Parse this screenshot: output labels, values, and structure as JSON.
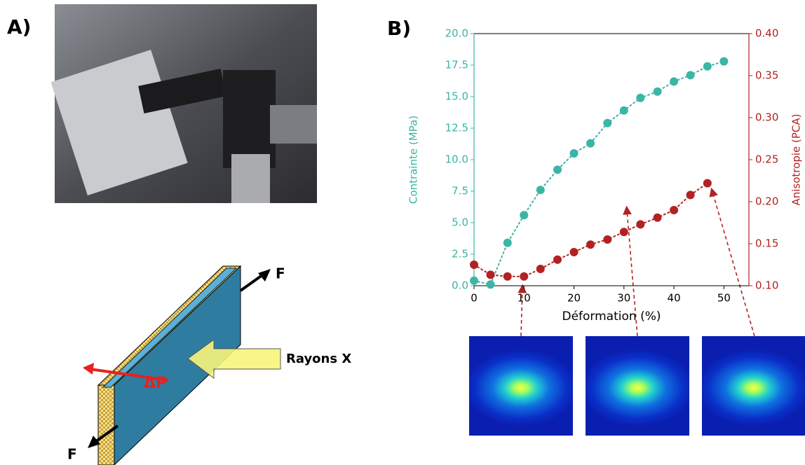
{
  "panel_labels": [
    "A)",
    "B)"
  ],
  "diagram": {
    "labels": [
      "F",
      "Rayons X",
      "ΔP",
      "F"
    ]
  },
  "chart_data": {
    "type": "line",
    "xlabel": "Déformation (%)",
    "ylabel": "Contrainte (MPa)",
    "y2label": "Anisotropie (PCA)",
    "xlim": [
      0,
      55
    ],
    "ylim": [
      0,
      20
    ],
    "y2lim": [
      0.1,
      0.4
    ],
    "xticks": [
      0,
      10,
      20,
      30,
      40,
      50
    ],
    "yticks": [
      {
        "value": 0,
        "label": "0.0"
      },
      {
        "value": 2.5,
        "label": "2.5"
      },
      {
        "value": 5,
        "label": "5.0"
      },
      {
        "value": 7.5,
        "label": "7.5"
      },
      {
        "value": 10,
        "label": "10.0"
      },
      {
        "value": 12.5,
        "label": "12.5"
      },
      {
        "value": 15,
        "label": "15.0"
      },
      {
        "value": 17.5,
        "label": "17.5"
      },
      {
        "value": 20,
        "label": "20.0"
      }
    ],
    "y2ticks": [
      {
        "value": 0.1,
        "label": "0.10"
      },
      {
        "value": 0.15,
        "label": "0.15"
      },
      {
        "value": 0.2,
        "label": "0.20"
      },
      {
        "value": 0.25,
        "label": "0.25"
      },
      {
        "value": 0.3,
        "label": "0.30"
      },
      {
        "value": 0.35,
        "label": "0.35"
      },
      {
        "value": 0.4,
        "label": "0.40"
      }
    ],
    "series": [
      {
        "color": "#3bb5a6",
        "axis": "y",
        "x": [
          0,
          3.3,
          6.7,
          10,
          13.3,
          16.7,
          20,
          23.3,
          26.7,
          30,
          33.3,
          36.7,
          40,
          43.3,
          46.7,
          50
        ],
        "values": [
          0.4,
          0.1,
          3.4,
          5.6,
          7.6,
          9.2,
          10.5,
          11.3,
          12.9,
          13.9,
          14.9,
          15.4,
          16.2,
          16.7,
          17.4,
          17.8
        ]
      },
      {
        "color": "#b22222",
        "axis": "y2",
        "x": [
          0,
          3.3,
          6.7,
          10,
          13.3,
          16.7,
          20,
          23.3,
          26.7,
          30,
          33.3,
          36.7,
          40,
          43.3,
          46.7
        ],
        "values": [
          0.125,
          0.113,
          0.111,
          0.111,
          0.12,
          0.131,
          0.14,
          0.149,
          0.155,
          0.164,
          0.173,
          0.181,
          0.19,
          0.208,
          0.222
        ]
      }
    ]
  }
}
